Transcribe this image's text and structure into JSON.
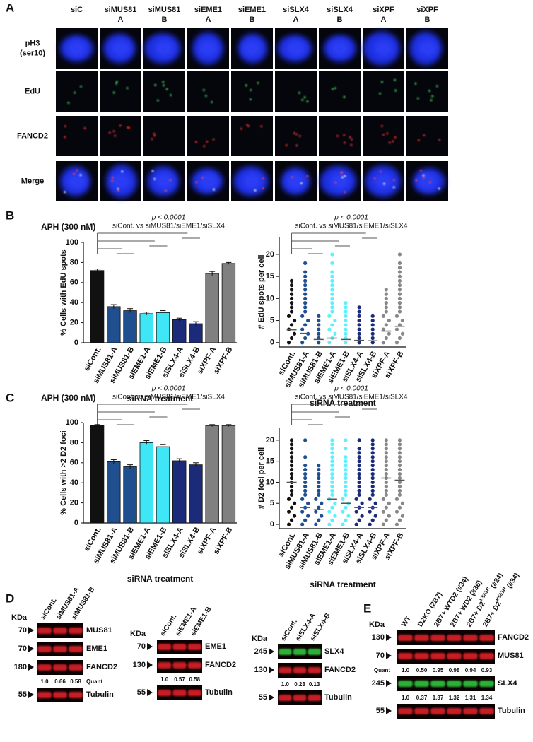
{
  "panel_labels": [
    "A",
    "B",
    "C",
    "D",
    "E"
  ],
  "panel_a": {
    "columns": [
      [
        "siC"
      ],
      [
        "siMUS81",
        "A"
      ],
      [
        "siMUS81",
        "B"
      ],
      [
        "siEME1",
        "A"
      ],
      [
        "siEME1",
        "B"
      ],
      [
        "siSLX4",
        "A"
      ],
      [
        "siSLX4",
        "B"
      ],
      [
        "siXPF",
        "A"
      ],
      [
        "siXPF",
        "B"
      ]
    ],
    "rows": [
      [
        "pH3",
        "(ser10)"
      ],
      [
        "EdU"
      ],
      [
        "FANCD2"
      ],
      [
        "Merge"
      ]
    ]
  },
  "chart_data": [
    {
      "type": "bar",
      "title": "APH (300 nM)",
      "annotation": "p < 0.0001",
      "annotation_2": "siCont. vs siMUS81/siEME1/siSLX4",
      "ylabel": "% Cells with EdU spots",
      "xlabel": "siRNA treatment",
      "categories": [
        "siCont.",
        "siMUS81-A",
        "siMUS81-B",
        "siEME1-A",
        "siEME1-B",
        "siSLX4-A",
        "siSLX4-B",
        "siXPF-A",
        "siXPF-B"
      ],
      "values": [
        72,
        36,
        32,
        29,
        30,
        23,
        19,
        69,
        79
      ],
      "errors": [
        1.5,
        2,
        2,
        1.5,
        2,
        1.5,
        2,
        2,
        1
      ],
      "colors": [
        "#111111",
        "#1f4f8f",
        "#1f4f8f",
        "#3fe6f5",
        "#3fe6f5",
        "#1c2a7a",
        "#1c2a7a",
        "#808080",
        "#808080"
      ],
      "ylim": [
        0,
        100
      ],
      "yticks": [
        0,
        20,
        40,
        60,
        80,
        100
      ]
    },
    {
      "type": "strip",
      "annotation": "p < 0.0001",
      "annotation_2": "siCont. vs siMUS81/siEME1/siSLX4",
      "ylabel": "# EdU spots per cell",
      "xlabel": "siRNA treatment",
      "categories": [
        "siCont.",
        "siMUS81-A",
        "siMUS81-B",
        "siEME1-A",
        "siEME1-B",
        "siSLX4-A",
        "siSLX4-B",
        "siXPF-A",
        "siXPF-B"
      ],
      "points": [
        [
          0,
          1,
          2,
          3,
          4,
          5,
          6,
          7,
          8,
          9,
          10,
          11,
          12,
          13,
          14
        ],
        [
          0,
          1,
          2,
          3,
          4,
          5,
          6,
          7,
          8,
          9,
          10,
          11,
          12,
          13,
          14,
          15,
          16,
          18
        ],
        [
          0,
          1,
          2,
          3,
          4,
          5,
          6
        ],
        [
          0,
          1,
          2,
          3,
          4,
          5,
          6,
          7,
          8,
          9,
          10,
          11,
          12,
          13,
          14,
          15,
          16,
          18,
          20
        ],
        [
          0,
          1,
          2,
          3,
          4,
          5,
          6,
          7,
          8,
          9
        ],
        [
          0,
          1,
          2,
          3,
          4,
          5,
          6,
          7,
          8
        ],
        [
          0,
          1,
          2,
          3,
          4,
          5,
          6
        ],
        [
          0,
          1,
          2,
          3,
          4,
          5,
          6,
          7,
          8,
          9,
          10,
          11,
          12
        ],
        [
          0,
          1,
          2,
          3,
          4,
          5,
          6,
          7,
          8,
          9,
          10,
          11,
          12,
          13,
          14,
          15,
          16,
          17,
          18,
          20
        ]
      ],
      "means": [
        2.9,
        2.1,
        0.7,
        1,
        0.7,
        0.5,
        0.4,
        2.6,
        3.7
      ],
      "colors": [
        "#111111",
        "#1f4f8f",
        "#1f4f8f",
        "#5ef0ff",
        "#5ef0ff",
        "#1c2a7a",
        "#1c2a7a",
        "#888888",
        "#888888"
      ],
      "ylim": [
        -1,
        24
      ],
      "yticks": [
        0,
        5,
        10,
        15,
        20
      ]
    },
    {
      "type": "bar",
      "title": "APH (300 nM)",
      "annotation": "p < 0.0001",
      "annotation_2": "siCont. vs siMUS81/siEME1/siSLX4",
      "ylabel": "% Cells with >2 D2 foci",
      "xlabel": "siRNA treatment",
      "categories": [
        "siCont.",
        "siMUS81-A",
        "siMUS81-B",
        "siEME1-A",
        "siEME1-B",
        "siSLX4-A",
        "siSLX4-B",
        "siXPF-A",
        "siXPF-B"
      ],
      "values": [
        97,
        61,
        56,
        80,
        76,
        62,
        58,
        97,
        97
      ],
      "errors": [
        1,
        2,
        2,
        2,
        2,
        2,
        2,
        1,
        1
      ],
      "colors": [
        "#111111",
        "#1f4f8f",
        "#1f4f8f",
        "#3fe6f5",
        "#3fe6f5",
        "#1c2a7a",
        "#1c2a7a",
        "#808080",
        "#808080"
      ],
      "ylim": [
        0,
        100
      ],
      "yticks": [
        0,
        20,
        40,
        60,
        80,
        100
      ]
    },
    {
      "type": "strip",
      "annotation": "p < 0.0001",
      "annotation_2": "siCont. vs siMUS81/siEME1/siSLX4",
      "ylabel": "# D2 foci per cell",
      "xlabel": "siRNA treatment",
      "categories": [
        "siCont.",
        "siMUS81-A",
        "siMUS81-B",
        "siEME1-A",
        "siEME1-B",
        "siSLX4-A",
        "siSLX4-B",
        "siXPF-A",
        "siXPF-B"
      ],
      "points": [
        [
          0,
          1,
          2,
          3,
          4,
          5,
          6,
          7,
          8,
          9,
          10,
          11,
          12,
          13,
          14,
          15,
          16,
          17,
          18,
          19,
          20
        ],
        [
          0,
          1,
          2,
          3,
          4,
          5,
          6,
          7,
          8,
          9,
          10,
          11,
          12,
          13,
          14,
          16,
          20
        ],
        [
          0,
          1,
          2,
          3,
          4,
          5,
          6,
          7,
          8,
          9,
          10,
          11,
          12,
          13,
          14
        ],
        [
          0,
          1,
          2,
          3,
          4,
          5,
          6,
          7,
          8,
          9,
          10,
          11,
          12,
          13,
          14,
          15,
          16,
          17,
          18,
          19,
          20
        ],
        [
          0,
          1,
          2,
          3,
          4,
          5,
          6,
          7,
          8,
          9,
          10,
          11,
          12,
          13,
          14,
          15,
          16,
          18,
          20
        ],
        [
          0,
          1,
          2,
          3,
          4,
          5,
          6,
          7,
          8,
          9,
          10,
          11,
          12,
          13,
          14,
          15,
          16,
          17,
          18,
          20
        ],
        [
          0,
          1,
          2,
          3,
          4,
          5,
          6,
          7,
          8,
          9,
          10,
          11,
          12,
          13,
          14,
          15,
          16,
          17,
          18,
          19,
          20
        ],
        [
          0,
          1,
          2,
          3,
          4,
          5,
          6,
          7,
          8,
          9,
          10,
          11,
          12,
          13,
          14,
          15,
          16,
          17,
          18,
          19,
          20
        ],
        [
          0,
          1,
          2,
          3,
          4,
          5,
          6,
          7,
          8,
          9,
          10,
          11,
          12,
          13,
          14,
          15,
          16,
          17,
          18,
          19,
          20
        ]
      ],
      "means": [
        10,
        4,
        3.5,
        6,
        5,
        4,
        4,
        11,
        10.5
      ],
      "colors": [
        "#111111",
        "#1f4f8f",
        "#1f4f8f",
        "#5ef0ff",
        "#5ef0ff",
        "#1c2a7a",
        "#1c2a7a",
        "#888888",
        "#888888"
      ],
      "ylim": [
        -1,
        23
      ],
      "yticks": [
        0,
        5,
        10,
        15,
        20
      ]
    }
  ],
  "blots": [
    {
      "kda": "KDa",
      "lanes": [
        "siCont.",
        "siMUS81-A",
        "siMUS81-B"
      ],
      "rows": [
        {
          "marker": 70,
          "protein": "MUS81",
          "color": "#e8202a"
        },
        {
          "marker": 70,
          "protein": "EME1",
          "color": "#e8202a"
        },
        {
          "marker": 180,
          "protein": "FANCD2",
          "color": "#e8202a"
        },
        {
          "quant_label": "Quant",
          "quant": [
            "1.0",
            "0.66",
            "0.58"
          ]
        },
        {
          "marker": 55,
          "protein": "Tubulin",
          "color": "#e8202a"
        }
      ]
    },
    {
      "kda": "KDa",
      "lanes": [
        "siCont.",
        "siEME1-A",
        "siEME1-B"
      ],
      "rows": [
        {
          "marker": 70,
          "protein": "EME1",
          "color": "#e8202a"
        },
        {
          "marker": 130,
          "protein": "FANCD2",
          "color": "#e8202a"
        },
        {
          "quant": [
            "1.0",
            "0.57",
            "0.58"
          ]
        },
        {
          "marker": 55,
          "protein": "Tubulin",
          "color": "#e8202a"
        }
      ]
    },
    {
      "kda": "KDa",
      "lanes": [
        "siCont.",
        "siSLX4-A",
        "siSLX4-B"
      ],
      "rows": [
        {
          "marker": 245,
          "protein": "SLX4",
          "color": "#30d040"
        },
        {
          "marker": 130,
          "protein": "FANCD2",
          "color": "#e8202a"
        },
        {
          "quant": [
            "1.0",
            "0.23",
            "0.13"
          ]
        },
        {
          "marker": 55,
          "protein": "Tubulin",
          "color": "#e8202a"
        }
      ]
    },
    {
      "kda": "KDa",
      "lanes": [
        {
          "text": "WT"
        },
        {
          "text": "D2KO (2B7)"
        },
        {
          "text": "2B7+ WTD2 (#34)"
        },
        {
          "text": "2B7+ WD2 (#36)"
        },
        {
          "text": "2B7+ D2",
          "sup": "K561R",
          "after": " (#24)"
        },
        {
          "text": "2B7+ D2",
          "sup": "K561R",
          "after": " (#34)"
        }
      ],
      "rows": [
        {
          "marker": 130,
          "protein": "FANCD2",
          "color": "#e8202a"
        },
        {
          "marker": 70,
          "protein": "MUS81",
          "color": "#e8202a"
        },
        {
          "quant_label": "Quant",
          "quant": [
            "1.0",
            "0.50",
            "0.95",
            "0.98",
            "0.94",
            "0.93"
          ]
        },
        {
          "marker": 245,
          "protein": "SLX4",
          "color": "#30d040"
        },
        {
          "quant": [
            "1.0",
            "0.37",
            "1.37",
            "1.32",
            "1.31",
            "1.34"
          ]
        },
        {
          "marker": 55,
          "protein": "Tubulin",
          "color": "#e8202a"
        }
      ]
    }
  ]
}
